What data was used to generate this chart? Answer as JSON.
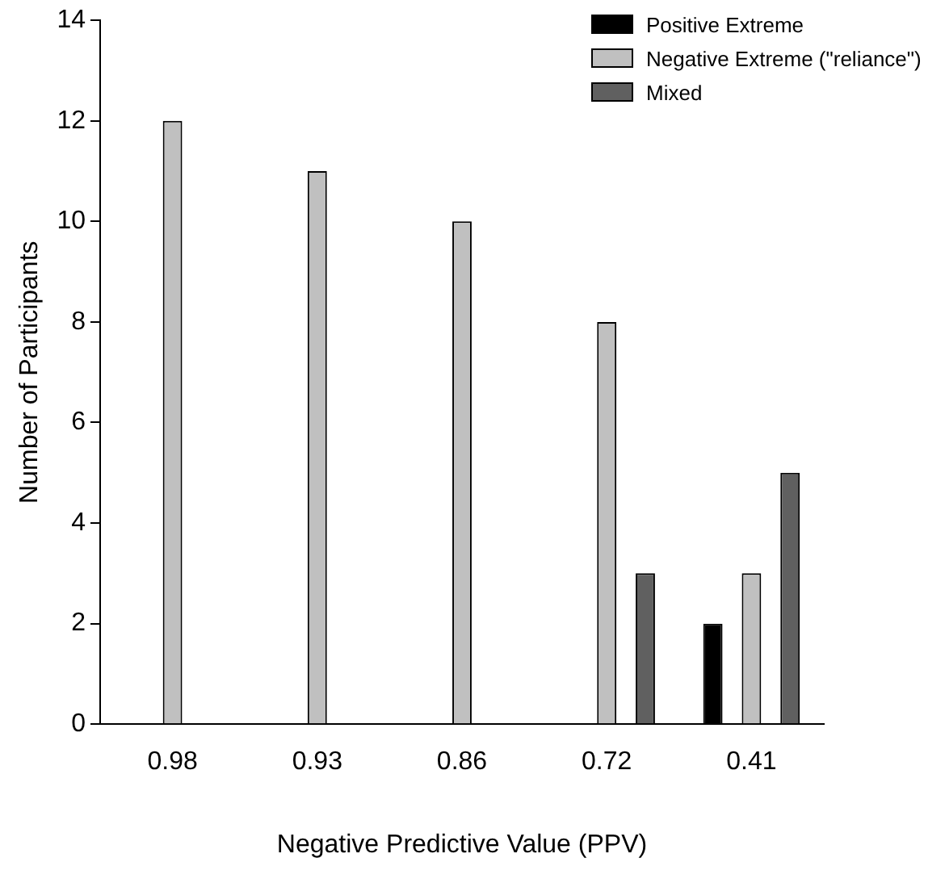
{
  "chart_data": {
    "type": "bar",
    "xlabel": "Negative Predictive Value (PPV)",
    "ylabel": "Number of Participants",
    "categories": [
      "0.98",
      "0.93",
      "0.86",
      "0.72",
      "0.41"
    ],
    "series": [
      {
        "name": "Positive Extreme",
        "color": "#000000",
        "values": [
          0,
          0,
          0,
          0,
          2
        ]
      },
      {
        "name": "Negative Extreme (\"reliance\")",
        "color": "#c0c0c0",
        "values": [
          12,
          11,
          10,
          8,
          3
        ]
      },
      {
        "name": "Mixed",
        "color": "#606060",
        "values": [
          0,
          0,
          0,
          3,
          5
        ]
      }
    ],
    "ylim": [
      0,
      14
    ],
    "yticks": [
      0,
      2,
      4,
      6,
      8,
      10,
      12,
      14
    ],
    "grid": false,
    "legend": "top right"
  }
}
